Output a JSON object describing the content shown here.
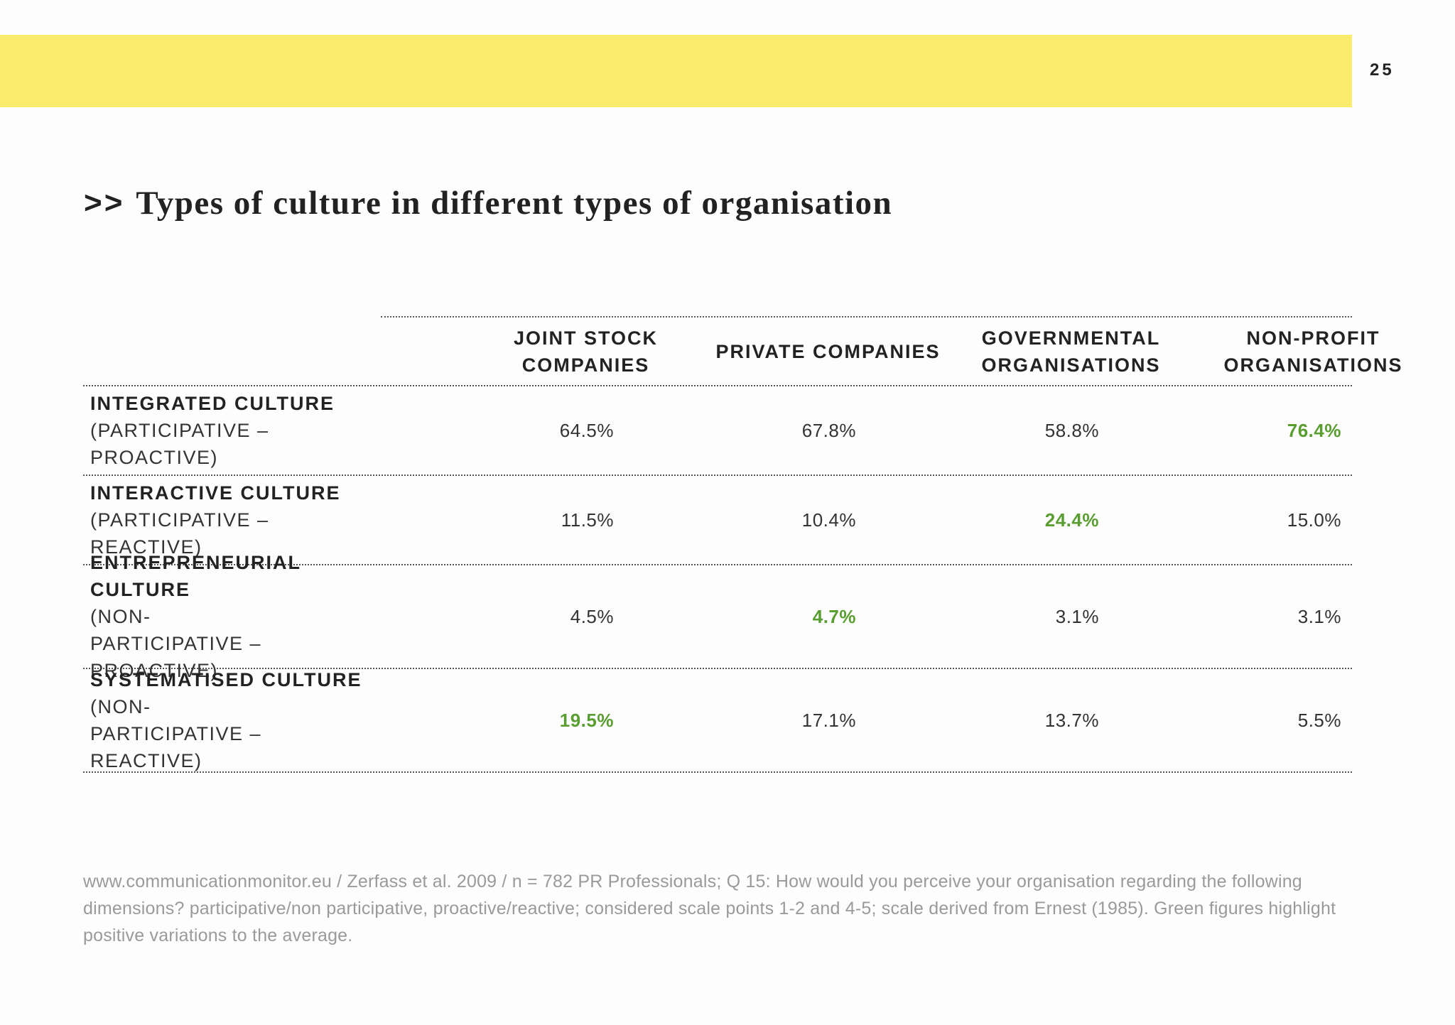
{
  "page": {
    "number": "25",
    "accent_band_color": "#fbec6e",
    "highlight_color": "#5a9e32"
  },
  "title": {
    "marker": ">>",
    "text": "Types of culture in different types of organisation"
  },
  "table": {
    "columns": [
      {
        "line1": "JOINT STOCK",
        "line2": "COMPANIES"
      },
      {
        "line1": "PRIVATE COMPANIES",
        "line2": ""
      },
      {
        "line1": "GOVERNMENTAL",
        "line2": "ORGANISATIONS"
      },
      {
        "line1": "NON-PROFIT",
        "line2": "ORGANISATIONS"
      }
    ],
    "rows": [
      {
        "label": "INTEGRATED CULTURE",
        "sublabel": "(PARTICIPATIVE – PROACTIVE)",
        "values": [
          "64.5%",
          "67.8%",
          "58.8%",
          "76.4%"
        ],
        "highlight_index": 3
      },
      {
        "label": "INTERACTIVE CULTURE",
        "sublabel": "(PARTICIPATIVE – REACTIVE)",
        "values": [
          "11.5%",
          "10.4%",
          "24.4%",
          "15.0%"
        ],
        "highlight_index": 2
      },
      {
        "label": "ENTREPRENEURIAL CULTURE",
        "sublabel": "(NON-PARTICIPATIVE – PROACTIVE)",
        "values": [
          "4.5%",
          "4.7%",
          "3.1%",
          "3.1%"
        ],
        "highlight_index": 1
      },
      {
        "label": "SYSTEMATISED CULTURE",
        "sublabel": "(NON-PARTICIPATIVE – REACTIVE)",
        "values": [
          "19.5%",
          "17.1%",
          "13.7%",
          "5.5%"
        ],
        "highlight_index": 0
      }
    ]
  },
  "footnote": "www.communicationmonitor.eu / Zerfass et al. 2009 / n = 782 PR Professionals; Q 15: How would you perceive your organisation regarding the following dimensions? participative/non participative, proactive/reactive; considered scale points 1-2 and 4-5; scale derived from Ernest (1985). Green figures highlight positive variations to the average."
}
